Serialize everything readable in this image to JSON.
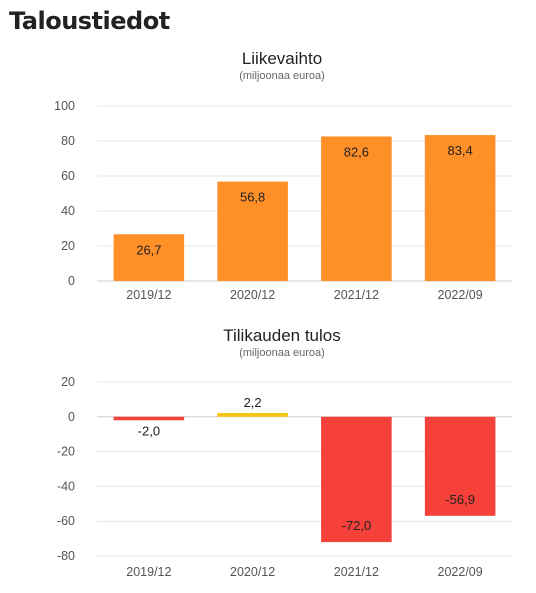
{
  "page": {
    "title": "Taloustiedot"
  },
  "chart_data": [
    {
      "type": "bar",
      "title": "Liikevaihto",
      "subtitle": "(miljoonaa euroa)",
      "categories": [
        "2019/12",
        "2020/12",
        "2021/12",
        "2022/09"
      ],
      "values": [
        26.7,
        56.8,
        82.6,
        83.4
      ],
      "value_labels": [
        "26,7",
        "56,8",
        "82,6",
        "83,4"
      ],
      "ylim": [
        0,
        100
      ],
      "yticks": [
        0,
        20,
        40,
        60,
        80,
        100
      ],
      "ytick_labels": [
        "0",
        "20",
        "40",
        "60",
        "80",
        "100"
      ],
      "grid": true,
      "colors": [
        "#ff9028",
        "#ff9028",
        "#ff9028",
        "#ff9028"
      ]
    },
    {
      "type": "bar",
      "title": "Tilikauden tulos",
      "subtitle": "(miljoonaa euroa)",
      "categories": [
        "2019/12",
        "2020/12",
        "2021/12",
        "2022/09"
      ],
      "values": [
        -2.0,
        2.2,
        -72.0,
        -56.9
      ],
      "value_labels": [
        "-2,0",
        "2,2",
        "-72,0",
        "-56,9"
      ],
      "ylim": [
        -80,
        20
      ],
      "yticks": [
        -80,
        -60,
        -40,
        -20,
        0,
        20
      ],
      "ytick_labels": [
        "-80",
        "-60",
        "-40",
        "-20",
        "0",
        "20"
      ],
      "grid": true,
      "colors": [
        "#f5413a",
        "#f5c518",
        "#f5413a",
        "#f5413a"
      ]
    }
  ]
}
